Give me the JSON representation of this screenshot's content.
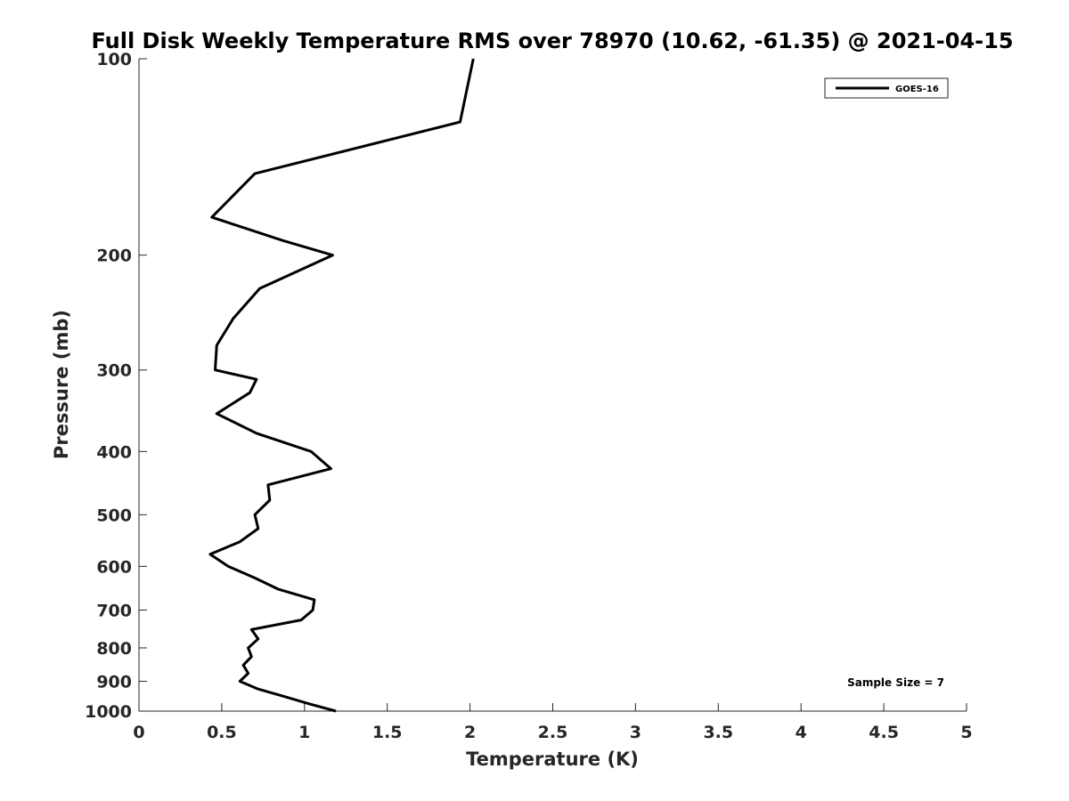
{
  "chart_data": {
    "type": "line",
    "title": "Full Disk Weekly Temperature RMS over 78970 (10.62, -61.35) @ 2021-04-15",
    "xlabel": "Temperature (K)",
    "ylabel": "Pressure (mb)",
    "xlim": [
      0,
      5
    ],
    "ylim": [
      100,
      1000
    ],
    "yscale": "log",
    "yreversed": true,
    "xticks": [
      0,
      0.5,
      1,
      1.5,
      2,
      2.5,
      3,
      3.5,
      4,
      4.5,
      5
    ],
    "xtick_labels": [
      "0",
      "0.5",
      "1",
      "1.5",
      "2",
      "2.5",
      "3",
      "3.5",
      "4",
      "4.5",
      "5"
    ],
    "yticks": [
      100,
      200,
      300,
      400,
      500,
      600,
      700,
      800,
      900,
      1000
    ],
    "ytick_labels": [
      "100",
      "200",
      "300",
      "400",
      "500",
      "600",
      "700",
      "800",
      "900",
      "1000"
    ],
    "legend_location": "top-right",
    "annotation": "Sample Size = 7",
    "series": [
      {
        "name": "GOES-16",
        "color": "#000000",
        "points": [
          {
            "x": 2.02,
            "p": 100
          },
          {
            "x": 1.94,
            "p": 125
          },
          {
            "x": 0.7,
            "p": 150
          },
          {
            "x": 0.44,
            "p": 175
          },
          {
            "x": 0.87,
            "p": 190
          },
          {
            "x": 1.17,
            "p": 200
          },
          {
            "x": 0.73,
            "p": 225
          },
          {
            "x": 0.57,
            "p": 250
          },
          {
            "x": 0.47,
            "p": 275
          },
          {
            "x": 0.46,
            "p": 300
          },
          {
            "x": 0.71,
            "p": 310
          },
          {
            "x": 0.67,
            "p": 325
          },
          {
            "x": 0.47,
            "p": 350
          },
          {
            "x": 0.71,
            "p": 375
          },
          {
            "x": 1.04,
            "p": 400
          },
          {
            "x": 1.16,
            "p": 425
          },
          {
            "x": 0.78,
            "p": 450
          },
          {
            "x": 0.79,
            "p": 475
          },
          {
            "x": 0.7,
            "p": 500
          },
          {
            "x": 0.72,
            "p": 525
          },
          {
            "x": 0.61,
            "p": 550
          },
          {
            "x": 0.43,
            "p": 575
          },
          {
            "x": 0.54,
            "p": 600
          },
          {
            "x": 0.7,
            "p": 625
          },
          {
            "x": 0.84,
            "p": 650
          },
          {
            "x": 1.06,
            "p": 675
          },
          {
            "x": 1.05,
            "p": 700
          },
          {
            "x": 0.98,
            "p": 725
          },
          {
            "x": 0.68,
            "p": 750
          },
          {
            "x": 0.72,
            "p": 775
          },
          {
            "x": 0.66,
            "p": 800
          },
          {
            "x": 0.68,
            "p": 825
          },
          {
            "x": 0.63,
            "p": 850
          },
          {
            "x": 0.66,
            "p": 875
          },
          {
            "x": 0.61,
            "p": 900
          },
          {
            "x": 0.72,
            "p": 925
          },
          {
            "x": 0.88,
            "p": 950
          },
          {
            "x": 1.03,
            "p": 975
          },
          {
            "x": 1.19,
            "p": 1000
          }
        ]
      }
    ]
  }
}
